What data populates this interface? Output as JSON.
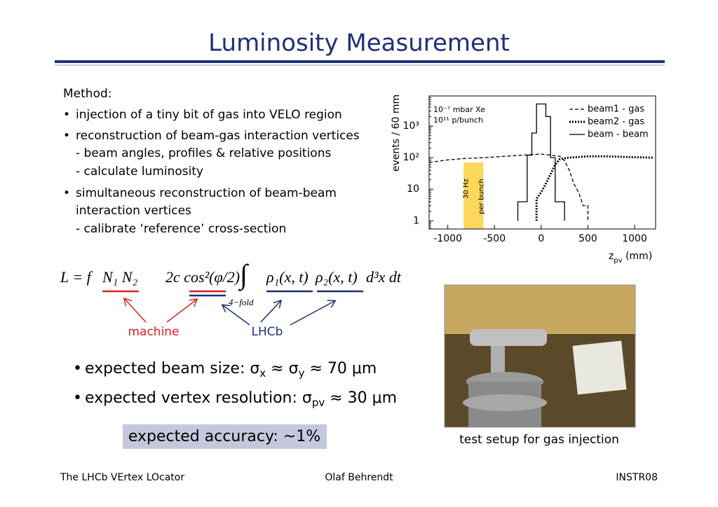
{
  "title": "Luminosity Measurement",
  "method": {
    "heading": "Method:",
    "bullets": [
      {
        "lines": [
          "injection of a tiny bit of gas into VELO region"
        ]
      },
      {
        "lines": [
          "reconstruction of beam-gas interaction vertices",
          "- beam angles, profiles & relative positions",
          "- calculate luminosity"
        ]
      },
      {
        "lines": [
          "simultaneous reconstruction of beam-beam",
          "interaction vertices",
          "- calibrate ‘reference’ cross-section"
        ]
      }
    ]
  },
  "chart_data": {
    "type": "line",
    "log_y": true,
    "ylabel": "events / 60 mm",
    "xlabel": [
      "z",
      "pv",
      " (mm)"
    ],
    "xlim": [
      -1200,
      1225
    ],
    "ylim": [
      0.55,
      9000
    ],
    "xticks": [
      -1000,
      -500,
      0,
      500,
      1000
    ],
    "yticks": [
      1,
      10,
      {
        "value": 100,
        "label": "10²"
      },
      {
        "value": 1000,
        "label": "10³"
      }
    ],
    "annotations": [
      "10⁻⁷ mbar Xe",
      "10¹¹ p/bunch"
    ],
    "band": {
      "label": [
        "30 Hz",
        "per bunch"
      ],
      "x": [
        -830,
        -620
      ],
      "value": 70,
      "color": "#fbd75b"
    },
    "legend": "upper right",
    "series": [
      {
        "name": "beam1 - gas",
        "color": "#000000",
        "style": "dashed",
        "x": [
          -1200,
          -1000,
          -800,
          -600,
          -400,
          -200,
          0,
          200,
          250,
          300,
          350,
          400,
          450,
          500,
          500
        ],
        "values": [
          70,
          85,
          95,
          100,
          110,
          120,
          130,
          110,
          80,
          40,
          15,
          8,
          3,
          3,
          1
        ]
      },
      {
        "name": "beam2 - gas",
        "color": "#000000",
        "style": "dotted",
        "x": [
          -50,
          -50,
          0,
          50,
          100,
          150,
          200,
          300,
          500,
          700,
          900,
          1200
        ],
        "values": [
          1,
          5,
          8,
          15,
          30,
          60,
          90,
          100,
          110,
          110,
          105,
          100
        ]
      },
      {
        "name": "beam - beam",
        "color": "#000000",
        "style": "solid",
        "x": [
          -250,
          -250,
          -150,
          -150,
          -100,
          -100,
          -50,
          -50,
          50,
          50,
          100,
          100,
          150,
          150,
          250,
          250
        ],
        "values": [
          1,
          4,
          4,
          120,
          120,
          600,
          600,
          5000,
          5000,
          2000,
          2000,
          100,
          100,
          4,
          4,
          1
        ]
      }
    ]
  },
  "formula": {
    "parts": [
      "L = f",
      "N₁ N₂",
      "2c cos²(φ/2)",
      "∫",
      "4−fold",
      "ρ₁(x, t)",
      "ρ₂(x, t)",
      "d³x dt"
    ],
    "machine": "machine",
    "lhcb": "LHCb"
  },
  "results": [
    {
      "parts": [
        "expected beam size: σ",
        "x",
        " ≈ σ",
        "y",
        " ≈ 70 μm"
      ]
    },
    {
      "parts": [
        "expected vertex resolution: σ",
        "pv",
        " ≈ 30 μm"
      ]
    }
  ],
  "accuracy": "expected accuracy: ~1%",
  "photo_caption": "test setup for gas injection",
  "footer": {
    "left": "The LHCb VErtex LOcator",
    "center": "Olaf Behrendt",
    "right": "INSTR08"
  }
}
